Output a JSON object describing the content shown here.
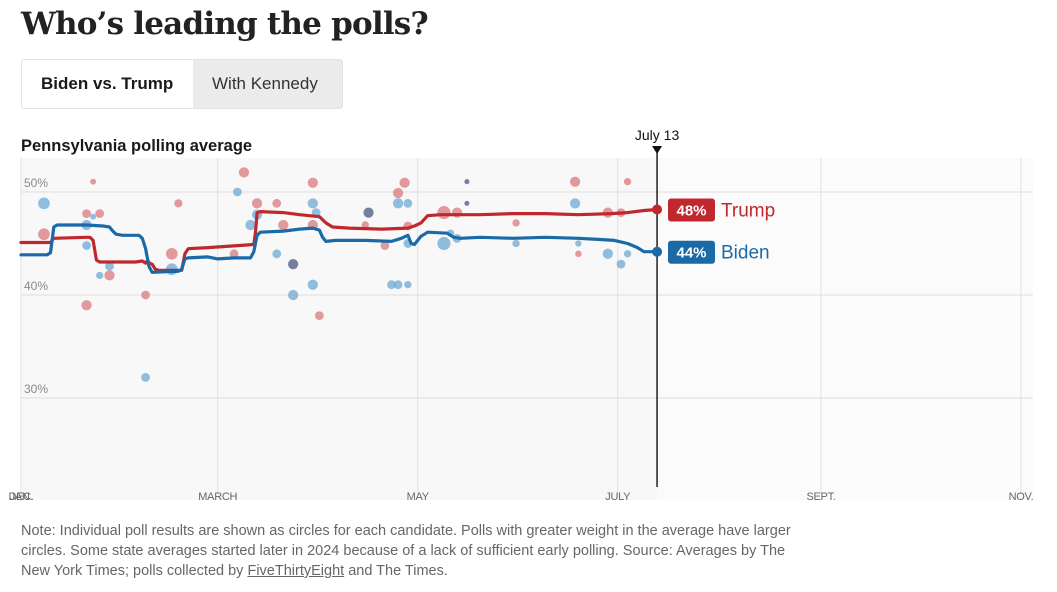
{
  "header": {
    "title": "Who’s leading the polls?"
  },
  "tabs": [
    {
      "label": "Biden vs. Trump",
      "active": true
    },
    {
      "label": "With Kennedy",
      "active": false
    }
  ],
  "chart_data": {
    "type": "line",
    "title": "Pennsylvania polling average",
    "xlabel": "",
    "ylabel": "",
    "x_unit": "day of year 2024",
    "xlim": [
      0,
      305
    ],
    "ylim": [
      25,
      53
    ],
    "y_ticks": [
      {
        "value": 50,
        "label": "50%"
      },
      {
        "value": 40,
        "label": "40%"
      },
      {
        "value": 30,
        "label": "30%"
      }
    ],
    "x_ticks": [
      {
        "day": 0,
        "label": "JAN."
      },
      {
        "day": 0,
        "label": "DEC."
      },
      {
        "day": 60,
        "label": "MARCH"
      },
      {
        "day": 121,
        "label": "MAY"
      },
      {
        "day": 182,
        "label": "JULY"
      },
      {
        "day": 244,
        "label": "SEPT."
      },
      {
        "day": 305,
        "label": "NOV."
      }
    ],
    "grid": true,
    "current_date": {
      "day": 194,
      "label": "July 13"
    },
    "series": [
      {
        "name": "Trump",
        "color": "#c0282d",
        "dot_color": "#d9797c",
        "final_value": 48,
        "final_label": "48%",
        "points": [
          [
            0,
            45.1
          ],
          [
            9,
            45.1
          ],
          [
            10,
            45.5
          ],
          [
            20,
            45.6
          ],
          [
            21,
            45.6
          ],
          [
            22,
            45.3
          ],
          [
            23,
            43.4
          ],
          [
            24,
            43.2
          ],
          [
            35,
            43.2
          ],
          [
            37,
            43.3
          ],
          [
            38,
            43.1
          ],
          [
            39,
            43.2
          ],
          [
            38,
            43.2
          ],
          [
            39,
            43.1
          ],
          [
            40,
            43.0
          ],
          [
            41,
            42.5
          ],
          [
            42,
            42.4
          ],
          [
            47,
            42.4
          ],
          [
            49,
            42.4
          ],
          [
            50,
            44.0
          ],
          [
            51,
            44.5
          ],
          [
            57,
            44.6
          ],
          [
            66,
            44.8
          ],
          [
            71,
            44.9
          ],
          [
            71.5,
            46.0
          ],
          [
            72,
            48.0
          ],
          [
            73,
            48.1
          ],
          [
            80,
            48.0
          ],
          [
            85,
            47.8
          ],
          [
            88,
            47.7
          ],
          [
            91,
            47.6
          ],
          [
            93,
            47.0
          ],
          [
            95,
            46.6
          ],
          [
            100,
            46.5
          ],
          [
            110,
            46.4
          ],
          [
            118,
            46.5
          ],
          [
            120,
            46.7
          ],
          [
            122,
            47.0
          ],
          [
            124,
            47.7
          ],
          [
            128,
            47.8
          ],
          [
            140,
            47.8
          ],
          [
            150,
            47.9
          ],
          [
            160,
            47.9
          ],
          [
            170,
            47.8
          ],
          [
            180,
            47.9
          ],
          [
            185,
            48.0
          ],
          [
            190,
            48.2
          ],
          [
            194,
            48.3
          ]
        ]
      },
      {
        "name": "Biden",
        "color": "#1a6aa8",
        "dot_color": "#6ea8d4",
        "final_value": 44,
        "final_label": "44%",
        "points": [
          [
            0,
            43.9
          ],
          [
            8,
            43.9
          ],
          [
            9,
            44.1
          ],
          [
            10,
            46.6
          ],
          [
            11,
            46.8
          ],
          [
            20,
            46.8
          ],
          [
            25,
            46.7
          ],
          [
            27,
            46.6
          ],
          [
            28,
            46.2
          ],
          [
            29,
            45.9
          ],
          [
            31,
            45.8
          ],
          [
            36,
            45.8
          ],
          [
            37,
            45.5
          ],
          [
            38,
            44.5
          ],
          [
            39,
            42.8
          ],
          [
            40,
            42.2
          ],
          [
            48,
            42.3
          ],
          [
            49,
            42.5
          ],
          [
            50,
            43.5
          ],
          [
            51,
            43.6
          ],
          [
            57,
            43.7
          ],
          [
            60,
            43.5
          ],
          [
            65,
            43.6
          ],
          [
            70,
            43.6
          ],
          [
            71,
            44.2
          ],
          [
            72,
            45.8
          ],
          [
            73,
            46.1
          ],
          [
            80,
            46.2
          ],
          [
            85,
            46.4
          ],
          [
            89,
            46.5
          ],
          [
            91,
            46.3
          ],
          [
            92,
            45.6
          ],
          [
            93,
            45.2
          ],
          [
            96,
            45.3
          ],
          [
            105,
            45.3
          ],
          [
            113,
            45.2
          ],
          [
            116,
            45.5
          ],
          [
            118,
            45.8
          ],
          [
            119,
            45.0
          ],
          [
            120,
            44.9
          ],
          [
            122,
            45.7
          ],
          [
            124,
            46.1
          ],
          [
            130,
            46.0
          ],
          [
            132,
            45.6
          ],
          [
            134,
            45.5
          ],
          [
            140,
            45.6
          ],
          [
            150,
            45.5
          ],
          [
            160,
            45.6
          ],
          [
            170,
            45.5
          ],
          [
            176,
            45.4
          ],
          [
            181,
            45.3
          ],
          [
            185,
            45.0
          ],
          [
            188,
            44.6
          ],
          [
            190,
            44.2
          ],
          [
            194,
            44.2
          ]
        ]
      }
    ],
    "polls": [
      {
        "cand": "Biden",
        "day": 7,
        "v": 48.9,
        "w": 3
      },
      {
        "cand": "Trump",
        "day": 7,
        "v": 45.9,
        "w": 3
      },
      {
        "cand": "Trump",
        "day": 22,
        "v": 51.0,
        "w": 1
      },
      {
        "cand": "Biden",
        "day": 22,
        "v": 47.6,
        "w": 1
      },
      {
        "cand": "Trump",
        "day": 20,
        "v": 47.9,
        "w": 2
      },
      {
        "cand": "Trump",
        "day": 24,
        "v": 47.9,
        "w": 2
      },
      {
        "cand": "Biden",
        "day": 20,
        "v": 46.8,
        "w": 2.5
      },
      {
        "cand": "Biden",
        "day": 20,
        "v": 44.8,
        "w": 2
      },
      {
        "cand": "Biden",
        "day": 24,
        "v": 41.9,
        "w": 1.5
      },
      {
        "cand": "Trump",
        "day": 20,
        "v": 39.0,
        "w": 2.5
      },
      {
        "cand": "Biden",
        "day": 27,
        "v": 42.8,
        "w": 2
      },
      {
        "cand": "Trump",
        "day": 27,
        "v": 41.9,
        "w": 2.5
      },
      {
        "cand": "Trump",
        "day": 38,
        "v": 40.0,
        "w": 2
      },
      {
        "cand": "Biden",
        "day": 38,
        "v": 32.0,
        "w": 2
      },
      {
        "cand": "Trump",
        "day": 46,
        "v": 44.0,
        "w": 3
      },
      {
        "cand": "Biden",
        "day": 46,
        "v": 42.5,
        "w": 3
      },
      {
        "cand": "Trump",
        "day": 48,
        "v": 48.9,
        "w": 1.8
      },
      {
        "cand": "Trump",
        "day": 65,
        "v": 44.0,
        "w": 2
      },
      {
        "cand": "Biden",
        "day": 66,
        "v": 50.0,
        "w": 2
      },
      {
        "cand": "Trump",
        "day": 68,
        "v": 51.9,
        "w": 2.5
      },
      {
        "cand": "Trump",
        "day": 72,
        "v": 48.9,
        "w": 2.5
      },
      {
        "cand": "Biden",
        "day": 70,
        "v": 46.8,
        "w": 2.5
      },
      {
        "cand": "Biden",
        "day": 72,
        "v": 47.8,
        "w": 2.5
      },
      {
        "cand": "Trump",
        "day": 78,
        "v": 48.9,
        "w": 2
      },
      {
        "cand": "Trump",
        "day": 80,
        "v": 46.8,
        "w": 2.5
      },
      {
        "cand": "Biden",
        "day": 78,
        "v": 44.0,
        "w": 2
      },
      {
        "cand": "Both",
        "day": 83,
        "v": 43.0,
        "w": 2.5
      },
      {
        "cand": "Biden",
        "day": 83,
        "v": 40.0,
        "w": 2.5
      },
      {
        "cand": "Trump",
        "day": 89,
        "v": 50.9,
        "w": 2.5
      },
      {
        "cand": "Biden",
        "day": 89,
        "v": 48.9,
        "w": 2.5
      },
      {
        "cand": "Biden",
        "day": 89,
        "v": 41.0,
        "w": 2.5
      },
      {
        "cand": "Trump",
        "day": 89,
        "v": 46.8,
        "w": 2.5
      },
      {
        "cand": "Trump",
        "day": 91,
        "v": 38.0,
        "w": 2
      },
      {
        "cand": "Biden",
        "day": 90,
        "v": 48.0,
        "w": 2
      },
      {
        "cand": "Trump",
        "day": 105,
        "v": 46.8,
        "w": 1.5
      },
      {
        "cand": "Both",
        "day": 106,
        "v": 48.0,
        "w": 2.5
      },
      {
        "cand": "Trump",
        "day": 111,
        "v": 44.8,
        "w": 2
      },
      {
        "cand": "Trump",
        "day": 115,
        "v": 49.9,
        "w": 2.5
      },
      {
        "cand": "Biden",
        "day": 113,
        "v": 41.0,
        "w": 2
      },
      {
        "cand": "Biden",
        "day": 115,
        "v": 41.0,
        "w": 2
      },
      {
        "cand": "Biden",
        "day": 118,
        "v": 41.0,
        "w": 1.5
      },
      {
        "cand": "Trump",
        "day": 117,
        "v": 50.9,
        "w": 2.5
      },
      {
        "cand": "Biden",
        "day": 115,
        "v": 48.9,
        "w": 2.5
      },
      {
        "cand": "Biden",
        "day": 118,
        "v": 48.9,
        "w": 2
      },
      {
        "cand": "Trump",
        "day": 118,
        "v": 46.7,
        "w": 2
      },
      {
        "cand": "Biden",
        "day": 118,
        "v": 45.0,
        "w": 2
      },
      {
        "cand": "Trump",
        "day": 129,
        "v": 48.0,
        "w": 3.5
      },
      {
        "cand": "Biden",
        "day": 129,
        "v": 45.0,
        "w": 3.5
      },
      {
        "cand": "Trump",
        "day": 133,
        "v": 48.0,
        "w": 2.5
      },
      {
        "cand": "Biden",
        "day": 133,
        "v": 45.5,
        "w": 2
      },
      {
        "cand": "Biden",
        "day": 131,
        "v": 46.0,
        "w": 1.5
      },
      {
        "cand": "Both",
        "day": 136,
        "v": 51.0,
        "w": 0.7
      },
      {
        "cand": "Both",
        "day": 136,
        "v": 48.9,
        "w": 0.7
      },
      {
        "cand": "Trump",
        "day": 151,
        "v": 47.0,
        "w": 1.5
      },
      {
        "cand": "Biden",
        "day": 151,
        "v": 45.0,
        "w": 1.5
      },
      {
        "cand": "Trump",
        "day": 169,
        "v": 51.0,
        "w": 2.5
      },
      {
        "cand": "Biden",
        "day": 169,
        "v": 48.9,
        "w": 2.5
      },
      {
        "cand": "Biden",
        "day": 170,
        "v": 45.0,
        "w": 1.2
      },
      {
        "cand": "Trump",
        "day": 170,
        "v": 44.0,
        "w": 1.2
      },
      {
        "cand": "Trump",
        "day": 179,
        "v": 48.0,
        "w": 2.5
      },
      {
        "cand": "Biden",
        "day": 179,
        "v": 44.0,
        "w": 2.5
      },
      {
        "cand": "Trump",
        "day": 183,
        "v": 48.0,
        "w": 2
      },
      {
        "cand": "Biden",
        "day": 183,
        "v": 43.0,
        "w": 2
      },
      {
        "cand": "Biden",
        "day": 185,
        "v": 44.0,
        "w": 1.5
      },
      {
        "cand": "Trump",
        "day": 185,
        "v": 51.0,
        "w": 1.5
      }
    ]
  },
  "footer": {
    "note_text": "Note: Individual poll results are shown as circles for each candidate. Polls with greater weight in the average have larger circles. Some state averages started later in 2024 because of a lack of sufficient early polling. Source: Averages by The New York Times; polls collected by ",
    "link_text": "FiveThirtyEight",
    "note_end": " and The Times."
  }
}
